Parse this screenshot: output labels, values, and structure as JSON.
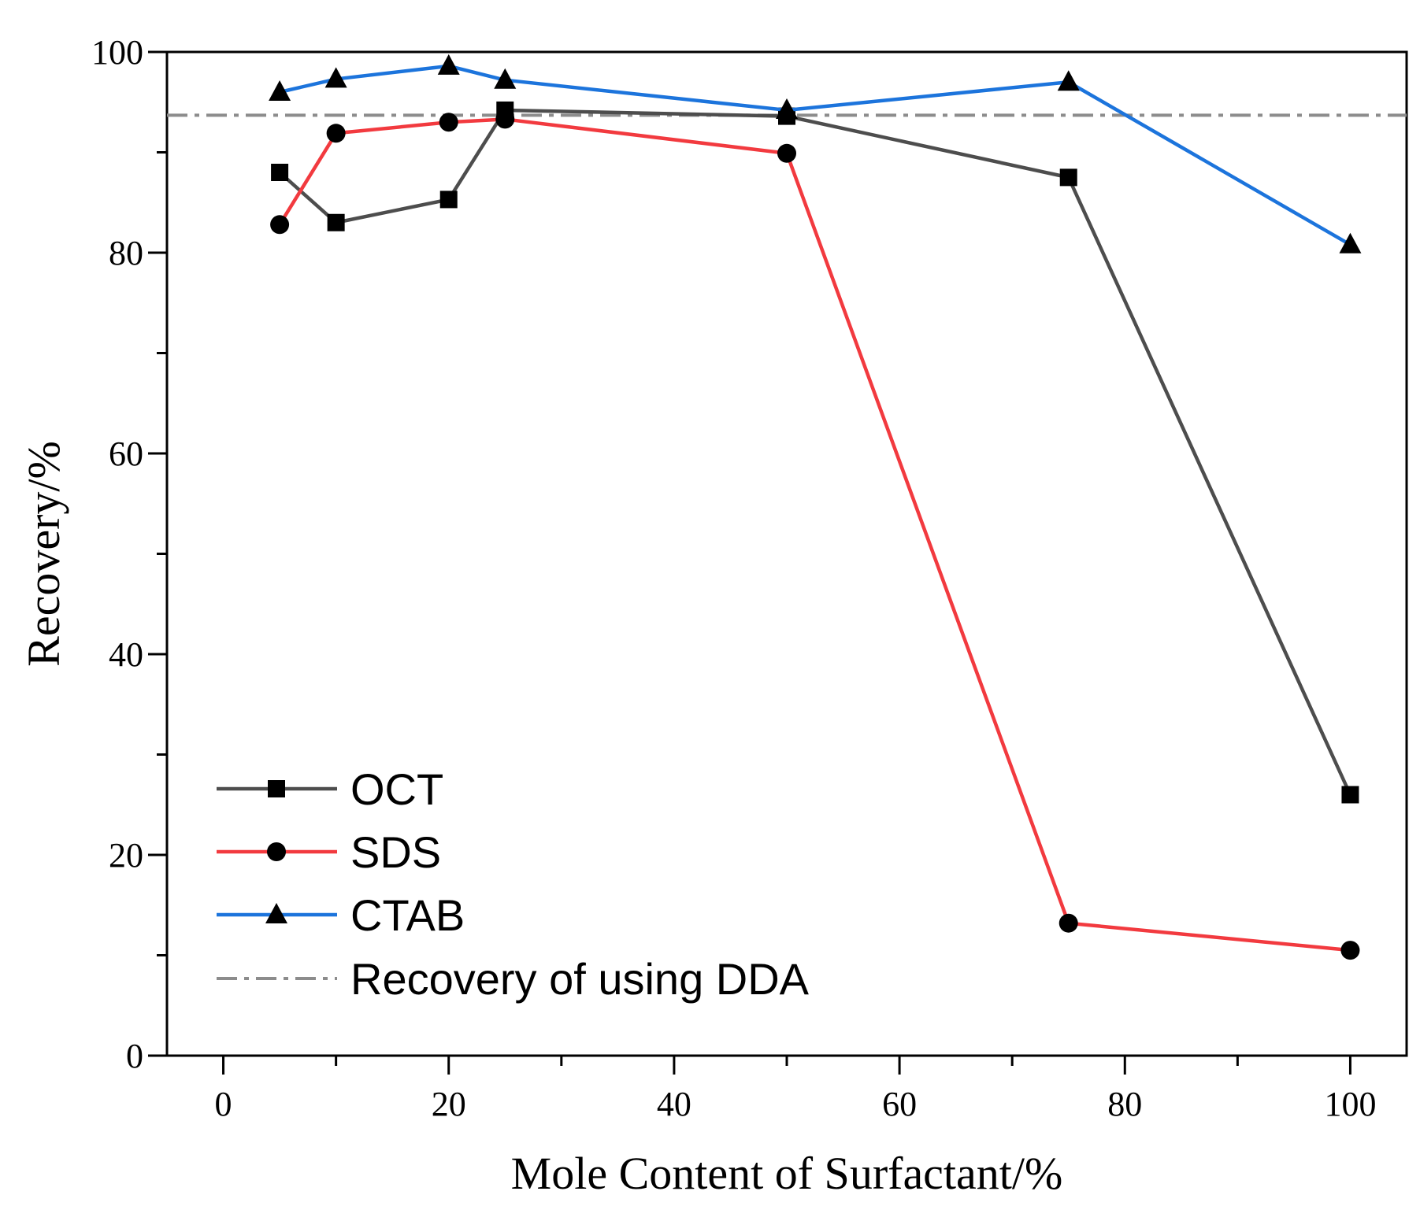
{
  "chart_data": {
    "type": "line",
    "title": "",
    "xlabel": "Mole Content of Surfactant/%",
    "ylabel": "Recovery/%",
    "xlim": [
      -5,
      105
    ],
    "ylim": [
      0,
      100
    ],
    "x_ticks": [
      0,
      20,
      40,
      60,
      80,
      100
    ],
    "x_minor_ticks": [
      10,
      30,
      50,
      70,
      90
    ],
    "y_ticks": [
      0,
      20,
      40,
      60,
      80,
      100
    ],
    "y_minor_ticks": [
      10,
      30,
      50,
      70,
      90
    ],
    "x_tick_labels": [
      "0",
      "20",
      "40",
      "60",
      "80",
      "100"
    ],
    "y_tick_labels": [
      "0",
      "20",
      "40",
      "60",
      "80",
      "100"
    ],
    "grid": false,
    "legend_position": "bottom-left",
    "series": [
      {
        "name": "OCT",
        "color": "#4d4d4d",
        "marker": "square",
        "x": [
          5,
          10,
          20,
          25,
          50,
          75,
          100
        ],
        "y": [
          88.0,
          83.0,
          85.3,
          94.2,
          93.6,
          87.5,
          26.0
        ]
      },
      {
        "name": "SDS",
        "color": "#f23a3f",
        "marker": "circle",
        "x": [
          5,
          10,
          20,
          25,
          50,
          75,
          100
        ],
        "y": [
          82.8,
          91.9,
          93.0,
          93.3,
          89.9,
          13.2,
          10.5
        ]
      },
      {
        "name": "CTAB",
        "color": "#1c74dc",
        "marker": "triangle",
        "x": [
          5,
          10,
          20,
          25,
          50,
          75,
          100
        ],
        "y": [
          96.0,
          97.3,
          98.6,
          97.2,
          94.2,
          97.0,
          80.8
        ]
      }
    ],
    "reference_line": {
      "name": "Recovery of using DDA",
      "color": "#8c8c8c",
      "style": "dash-dot",
      "y": 93.7
    }
  }
}
